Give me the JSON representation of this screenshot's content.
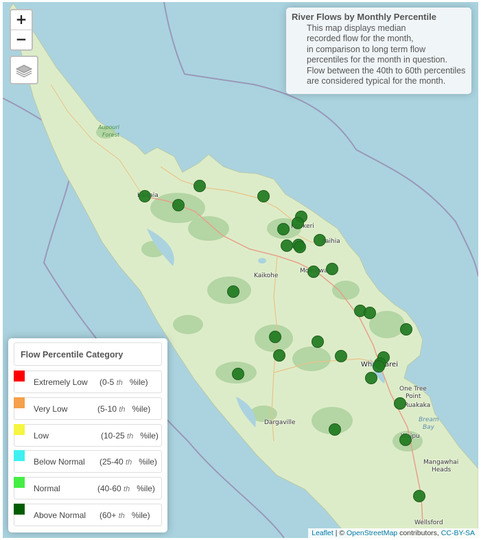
{
  "zoom": {
    "in_label": "+",
    "out_label": "−"
  },
  "layers_icon": "layers-icon",
  "info": {
    "title": "River Flows by Monthly Percentile",
    "lines": [
      "This map displays median",
      "recorded flow for the month,",
      "in comparison to long term flow",
      "percentiles for the month in question.",
      "Flow between the 40th to 60th percentiles",
      "are considered typical for the month."
    ]
  },
  "legend": {
    "title": "Flow Percentile Category",
    "items": [
      {
        "name": "Extremely Low",
        "range_open": "(0-5",
        "th": "th",
        "range_close": "%ile)",
        "color": "#ff0000"
      },
      {
        "name": "Very Low",
        "range_open": "(5-10",
        "th": "th",
        "range_close": "%ile)",
        "color": "#f5a04a"
      },
      {
        "name": "Low",
        "range_open": "(10-25",
        "th": "th",
        "range_close": "%ile)",
        "color": "#f5f542"
      },
      {
        "name": "Below Normal",
        "range_open": "(25-40",
        "th": "th",
        "range_close": "%ile)",
        "color": "#40f0f0"
      },
      {
        "name": "Normal",
        "range_open": "(40-60",
        "th": "th",
        "range_close": "%ile)",
        "color": "#44ee44"
      },
      {
        "name": "Above Normal",
        "range_open": "(60+",
        "th": "th",
        "range_close": "%ile)",
        "color": "#005c00"
      }
    ]
  },
  "places": {
    "aupouri": "Aupouri",
    "forest": "Forest",
    "kaitaia": "Kaitaia",
    "kerikeri": "Kerikeri",
    "paihia": "Paihia",
    "kaikohe": "Kaikohe",
    "moerewa": "Moerewa",
    "whangarei": "Whangarei",
    "one_tree_point": "One Tree",
    "point": "Point",
    "ruakaka": "Ruakaka",
    "bream_bay": "Bream",
    "bay": "Bay",
    "dargaville": "Dargaville",
    "waipu": "Waipu",
    "mangawhai": "Mangawhai",
    "heads": "Heads",
    "wellsford": "Wellsford"
  },
  "site_marker_color": "#1f7a1f",
  "attribution": {
    "leaflet": "Leaflet",
    "sep": " | © ",
    "osm": "OpenStreetMap",
    "contrib": " contributors, ",
    "license": "CC-BY-SA"
  }
}
